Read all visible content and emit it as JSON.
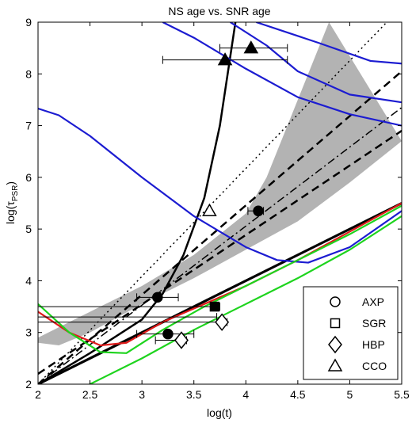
{
  "chart_data": {
    "type": "line",
    "title": "NS age vs. SNR age",
    "xlabel": "log(t)",
    "ylabel_main": "log(τ",
    "ylabel_sub": "PSR",
    "ylabel_close": ")",
    "xlim": [
      2,
      5.5
    ],
    "ylim": [
      2,
      9
    ],
    "xticks": [
      2,
      2.5,
      3,
      3.5,
      4,
      4.5,
      5,
      5.5
    ],
    "xtick_labels": [
      "2",
      "2.5",
      "3",
      "3.5",
      "4",
      "4.5",
      "5",
      "5.5"
    ],
    "yticks": [
      2,
      3,
      4,
      5,
      6,
      7,
      8,
      9
    ],
    "ytick_labels": [
      "2",
      "3",
      "4",
      "5",
      "6",
      "7",
      "8",
      "9"
    ],
    "grid": false,
    "legend_position": "bottom-right",
    "legend": [
      {
        "label": "AXP",
        "marker": "circle"
      },
      {
        "label": "SGR",
        "marker": "square"
      },
      {
        "label": "HBP",
        "marker": "diamond"
      },
      {
        "label": "CCO",
        "marker": "triangle"
      }
    ],
    "colors": {
      "shade": "#b3b3b3",
      "blue": "#1c1cd1",
      "red": "#e01b1b",
      "green": "#1ed41e",
      "black": "#000000"
    },
    "shaded_band": {
      "upper": [
        [
          2.0,
          2.9
        ],
        [
          2.5,
          3.4
        ],
        [
          3.0,
          3.9
        ],
        [
          3.5,
          4.5
        ],
        [
          4.0,
          5.3
        ],
        [
          4.2,
          6.0
        ],
        [
          4.4,
          7.0
        ],
        [
          4.6,
          8.0
        ],
        [
          4.8,
          9.0
        ]
      ],
      "lower": [
        [
          2.0,
          2.8
        ],
        [
          2.2,
          2.75
        ],
        [
          2.5,
          3.0
        ],
        [
          3.0,
          3.55
        ],
        [
          3.5,
          4.05
        ],
        [
          4.0,
          4.6
        ],
        [
          4.5,
          5.15
        ],
        [
          5.0,
          5.9
        ],
        [
          5.5,
          6.7
        ]
      ]
    },
    "series": [
      {
        "color": "black",
        "style": "solid",
        "width": 2.5,
        "values": [
          [
            2.0,
            2.0
          ],
          [
            2.5,
            2.6
          ],
          [
            3.0,
            3.25
          ],
          [
            3.2,
            3.75
          ],
          [
            3.4,
            4.5
          ],
          [
            3.6,
            5.6
          ],
          [
            3.75,
            7.0
          ],
          [
            3.9,
            9.0
          ]
        ]
      },
      {
        "color": "black",
        "style": "solid",
        "width": 3.2,
        "values": [
          [
            2.0,
            2.0
          ],
          [
            5.5,
            5.5
          ]
        ]
      },
      {
        "color": "black",
        "style": "dashed",
        "width": 2.5,
        "values": [
          [
            2.0,
            2.2
          ],
          [
            5.5,
            6.9
          ]
        ]
      },
      {
        "color": "black",
        "style": "dashed",
        "width": 2.5,
        "values": [
          [
            2.0,
            2.0
          ],
          [
            5.5,
            8.05
          ]
        ]
      },
      {
        "color": "black",
        "style": "dashdot",
        "width": 1.5,
        "values": [
          [
            2.0,
            2.0
          ],
          [
            5.5,
            7.35
          ]
        ]
      },
      {
        "color": "black",
        "style": "dotted",
        "width": 1.5,
        "values": [
          [
            2.0,
            2.0
          ],
          [
            5.5,
            9.3
          ]
        ]
      },
      {
        "color": "blue",
        "style": "solid",
        "width": 2.2,
        "values": [
          [
            2.0,
            7.33
          ],
          [
            2.2,
            7.2
          ],
          [
            2.5,
            6.8
          ],
          [
            3.0,
            6.0
          ],
          [
            3.5,
            5.25
          ],
          [
            4.0,
            4.65
          ],
          [
            4.3,
            4.4
          ],
          [
            4.6,
            4.35
          ],
          [
            5.0,
            4.65
          ],
          [
            5.5,
            5.35
          ]
        ]
      },
      {
        "color": "blue",
        "style": "solid",
        "width": 2.2,
        "values": [
          [
            3.2,
            9.0
          ],
          [
            3.5,
            8.7
          ],
          [
            4.0,
            8.1
          ],
          [
            4.5,
            7.55
          ],
          [
            5.0,
            7.22
          ],
          [
            5.5,
            7.0
          ]
        ]
      },
      {
        "color": "blue",
        "style": "solid",
        "width": 2.2,
        "values": [
          [
            3.85,
            9.0
          ],
          [
            4.2,
            8.55
          ],
          [
            4.5,
            8.05
          ],
          [
            5.0,
            7.6
          ],
          [
            5.5,
            7.45
          ]
        ]
      },
      {
        "color": "blue",
        "style": "solid",
        "width": 2.2,
        "values": [
          [
            4.1,
            9.0
          ],
          [
            4.7,
            8.6
          ],
          [
            5.2,
            8.25
          ],
          [
            5.5,
            8.2
          ]
        ]
      },
      {
        "color": "red",
        "style": "solid",
        "width": 2.2,
        "values": [
          [
            2.0,
            3.4
          ],
          [
            2.3,
            3.0
          ],
          [
            2.6,
            2.75
          ],
          [
            2.85,
            2.8
          ],
          [
            3.2,
            3.2
          ],
          [
            3.6,
            3.55
          ],
          [
            4.0,
            3.9
          ],
          [
            4.5,
            4.4
          ],
          [
            5.0,
            4.95
          ],
          [
            5.5,
            5.5
          ]
        ]
      },
      {
        "color": "green",
        "style": "solid",
        "width": 2.2,
        "values": [
          [
            2.0,
            3.55
          ],
          [
            2.3,
            3.0
          ],
          [
            2.6,
            2.62
          ],
          [
            2.85,
            2.6
          ],
          [
            3.2,
            3.05
          ],
          [
            3.6,
            3.5
          ],
          [
            4.0,
            3.9
          ],
          [
            4.5,
            4.4
          ],
          [
            5.0,
            4.9
          ],
          [
            5.5,
            5.45
          ]
        ]
      },
      {
        "color": "green",
        "style": "solid",
        "width": 2.2,
        "values": [
          [
            2.0,
            1.5
          ],
          [
            2.5,
            2.0
          ],
          [
            3.0,
            2.5
          ],
          [
            3.5,
            3.05
          ],
          [
            4.0,
            3.55
          ],
          [
            4.5,
            4.05
          ],
          [
            5.0,
            4.6
          ],
          [
            5.5,
            5.25
          ]
        ]
      }
    ],
    "points": [
      {
        "type": "AXP",
        "x": 3.15,
        "y": 3.68,
        "xerr": [
          0.2,
          0.2
        ],
        "filled": true
      },
      {
        "type": "AXP",
        "x": 3.25,
        "y": 2.97,
        "xerr": [
          0.3,
          0.25
        ],
        "filled": true
      },
      {
        "type": "AXP",
        "x": 4.12,
        "y": 5.35,
        "xerr": [
          0.1,
          0.05
        ],
        "filled": true
      },
      {
        "type": "SGR",
        "x": 3.7,
        "y": 3.5,
        "xerr": [
          1.7,
          0.05
        ],
        "filled": true
      },
      {
        "type": "HBP",
        "x": 3.38,
        "y": 2.85,
        "xerr": [
          0.25,
          0.05
        ],
        "filled": false
      },
      {
        "type": "HBP",
        "x": 3.77,
        "y": 3.2,
        "xerr": [
          1.77,
          0.05
        ],
        "filled": false
      },
      {
        "type": "CCO",
        "x": 3.65,
        "y": 5.35,
        "xerr": [
          0.0,
          0.0
        ],
        "filled": false
      },
      {
        "type": "CCO",
        "x": 3.8,
        "y": 8.27,
        "xerr": [
          0.6,
          0.6
        ],
        "filled": true
      },
      {
        "type": "CCO",
        "x": 4.05,
        "y": 8.5,
        "xerr": [
          0.3,
          0.35
        ],
        "filled": true
      }
    ],
    "extra_error_bars": [
      {
        "y": 3.3,
        "x_from": 2.0,
        "x_to": 3.72
      }
    ]
  }
}
